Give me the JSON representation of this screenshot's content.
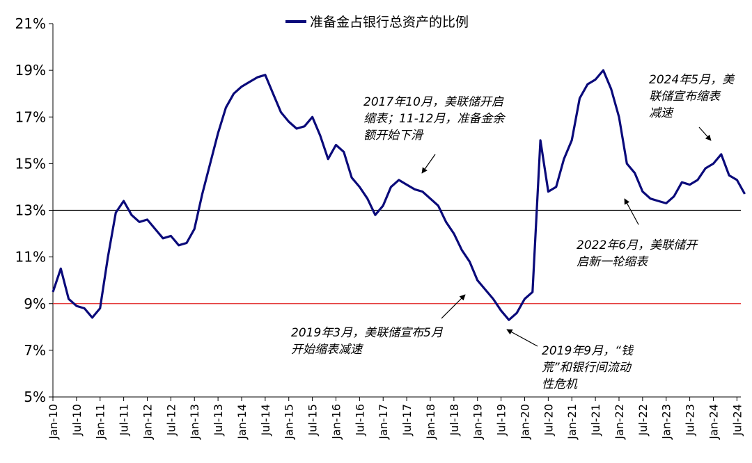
{
  "chart_data": {
    "type": "line",
    "legend": "准备金占银行总资产的比例",
    "y_ticks": [
      "5%",
      "7%",
      "9%",
      "11%",
      "13%",
      "15%",
      "17%",
      "19%",
      "21%"
    ],
    "x_ticks": [
      "Jan-10",
      "Jul-10",
      "Jan-11",
      "Jul-11",
      "Jan-12",
      "Jul-12",
      "Jan-13",
      "Jul-13",
      "Jan-14",
      "Jul-14",
      "Jan-15",
      "Jul-15",
      "Jan-16",
      "Jul-16",
      "Jan-17",
      "Jul-17",
      "Jan-18",
      "Jul-18",
      "Jan-19",
      "Jul-19",
      "Jan-20",
      "Jul-20",
      "Jan-21",
      "Jul-21",
      "Jan-22",
      "Jul-22",
      "Jan-23",
      "Jul-23",
      "Jan-24",
      "Jul-24"
    ],
    "ylim": [
      5,
      21
    ],
    "reference_lines": [
      {
        "value": 13,
        "color": "#000000"
      },
      {
        "value": 9,
        "color": "#e02020"
      }
    ],
    "series": [
      {
        "name": "准备金占银行总资产的比例",
        "color": "#0a0a7a",
        "x": [
          "2010-01",
          "2010-03",
          "2010-05",
          "2010-07",
          "2010-09",
          "2010-11",
          "2011-01",
          "2011-03",
          "2011-05",
          "2011-07",
          "2011-09",
          "2011-11",
          "2012-01",
          "2012-03",
          "2012-05",
          "2012-07",
          "2012-09",
          "2012-11",
          "2013-01",
          "2013-03",
          "2013-05",
          "2013-07",
          "2013-09",
          "2013-11",
          "2014-01",
          "2014-03",
          "2014-05",
          "2014-07",
          "2014-09",
          "2014-11",
          "2015-01",
          "2015-03",
          "2015-05",
          "2015-07",
          "2015-09",
          "2015-11",
          "2016-01",
          "2016-03",
          "2016-05",
          "2016-07",
          "2016-09",
          "2016-11",
          "2017-01",
          "2017-03",
          "2017-05",
          "2017-07",
          "2017-09",
          "2017-11",
          "2018-01",
          "2018-03",
          "2018-05",
          "2018-07",
          "2018-09",
          "2018-11",
          "2019-01",
          "2019-03",
          "2019-05",
          "2019-07",
          "2019-09",
          "2019-11",
          "2020-01",
          "2020-03",
          "2020-05",
          "2020-07",
          "2020-09",
          "2020-11",
          "2021-01",
          "2021-03",
          "2021-05",
          "2021-07",
          "2021-09",
          "2021-11",
          "2022-01",
          "2022-03",
          "2022-05",
          "2022-07",
          "2022-09",
          "2022-11",
          "2023-01",
          "2023-03",
          "2023-05",
          "2023-07",
          "2023-09",
          "2023-11",
          "2024-01",
          "2024-03",
          "2024-05",
          "2024-07",
          "2024-09"
        ],
        "values": [
          9.5,
          10.5,
          9.2,
          8.9,
          8.8,
          8.4,
          8.8,
          11.0,
          12.9,
          13.4,
          12.8,
          12.5,
          12.6,
          12.2,
          11.8,
          11.9,
          11.5,
          11.6,
          12.2,
          13.7,
          15.0,
          16.3,
          17.4,
          18.0,
          18.3,
          18.5,
          18.7,
          18.8,
          18.0,
          17.2,
          16.8,
          16.5,
          16.6,
          17.0,
          16.2,
          15.2,
          15.8,
          15.5,
          14.4,
          14.0,
          13.5,
          12.8,
          13.2,
          14.0,
          14.3,
          14.1,
          13.9,
          13.8,
          13.5,
          13.2,
          12.5,
          12.0,
          11.3,
          10.8,
          10.0,
          9.6,
          9.2,
          8.7,
          8.3,
          8.6,
          9.2,
          9.5,
          16.0,
          13.8,
          14.0,
          15.2,
          16.0,
          17.8,
          18.4,
          18.6,
          19.0,
          18.2,
          17.0,
          15.0,
          14.6,
          13.8,
          13.5,
          13.4,
          13.3,
          13.6,
          14.2,
          14.1,
          14.3,
          14.8,
          15.0,
          15.4,
          14.5,
          14.3,
          13.7
        ]
      }
    ],
    "annotations": [
      {
        "lines": [
          "2017年10月，美联储开启",
          "缩表；11-12月，准备金余",
          "额开始下滑"
        ]
      },
      {
        "lines": [
          "2024年5月，美",
          "联储宣布缩表",
          "减速"
        ]
      },
      {
        "lines": [
          "2022年6月，美联储开",
          "启新一轮缩表"
        ]
      },
      {
        "lines": [
          "2019年3月，美联储宣布5月",
          "开始缩表减速"
        ]
      },
      {
        "lines": [
          "2019年9月，“钱",
          "荒”和银行间流动",
          "性危机"
        ]
      }
    ]
  }
}
